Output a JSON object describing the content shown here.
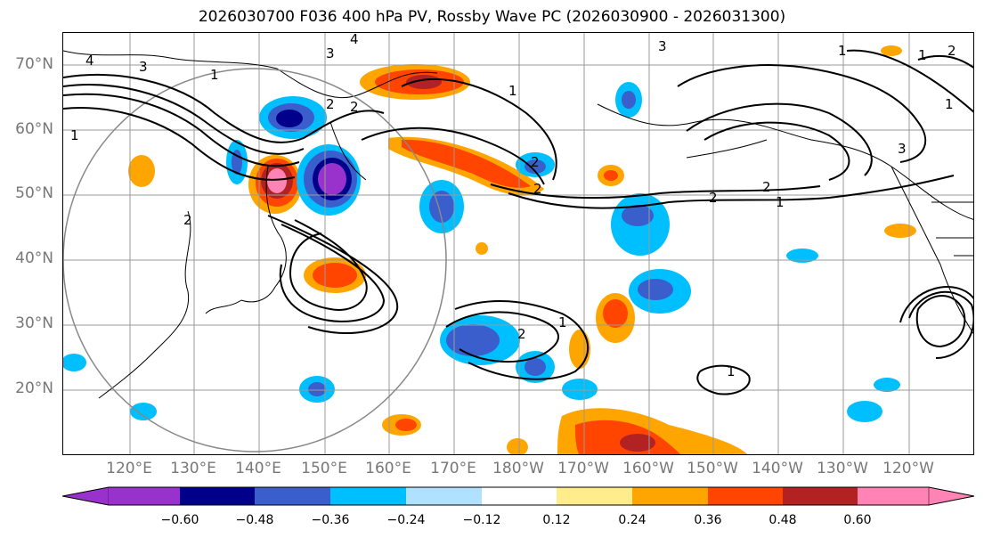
{
  "title": "2026030700 F036 400 hPa PV, Rossby Wave PC (2026030900 - 2026031300)",
  "lat_labels": [
    "70°N",
    "60°N",
    "50°N",
    "40°N",
    "30°N",
    "20°N"
  ],
  "lon_labels": [
    "120°E",
    "130°E",
    "140°E",
    "150°E",
    "160°E",
    "170°E",
    "180°W",
    "170°W",
    "160°W",
    "150°W",
    "140°W",
    "130°W",
    "120°W"
  ],
  "contour_labels": [
    "4",
    "3",
    "3",
    "4",
    "1",
    "1",
    "3",
    "2",
    "2",
    "2",
    "2",
    "1",
    "1",
    "2",
    "2",
    "3",
    "2",
    "1",
    "1",
    "2",
    "1",
    "1",
    "2",
    "1"
  ],
  "colorbar": {
    "colors": [
      "#9932CC",
      "#00008B",
      "#3A5FCD",
      "#00BFFF",
      "#B0E2FF",
      "#FFFFFF",
      "#FFEC8B",
      "#FFA500",
      "#FF4500",
      "#B22222",
      "#FF83B4"
    ],
    "tick_labels": [
      "−0.60",
      "−0.48",
      "−0.36",
      "−0.24",
      "−0.12",
      "0.12",
      "0.24",
      "0.36",
      "0.48",
      "0.60"
    ]
  }
}
